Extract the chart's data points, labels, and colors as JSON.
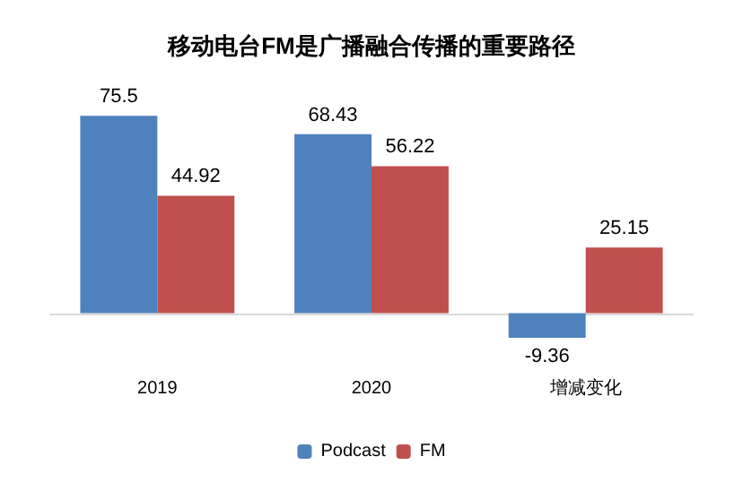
{
  "chart_data": {
    "type": "bar",
    "title": "移动电台FM是广播融合传播的重要路径",
    "categories": [
      "2019",
      "2020",
      "增减变化"
    ],
    "series": [
      {
        "name": "Podcast",
        "color": "#4f81bd",
        "values": [
          75.5,
          68.43,
          -9.36
        ]
      },
      {
        "name": "FM",
        "color": "#c0504d",
        "values": [
          44.92,
          56.22,
          25.15
        ]
      }
    ],
    "data_labels": true,
    "legend": "bottom",
    "grid": false
  }
}
